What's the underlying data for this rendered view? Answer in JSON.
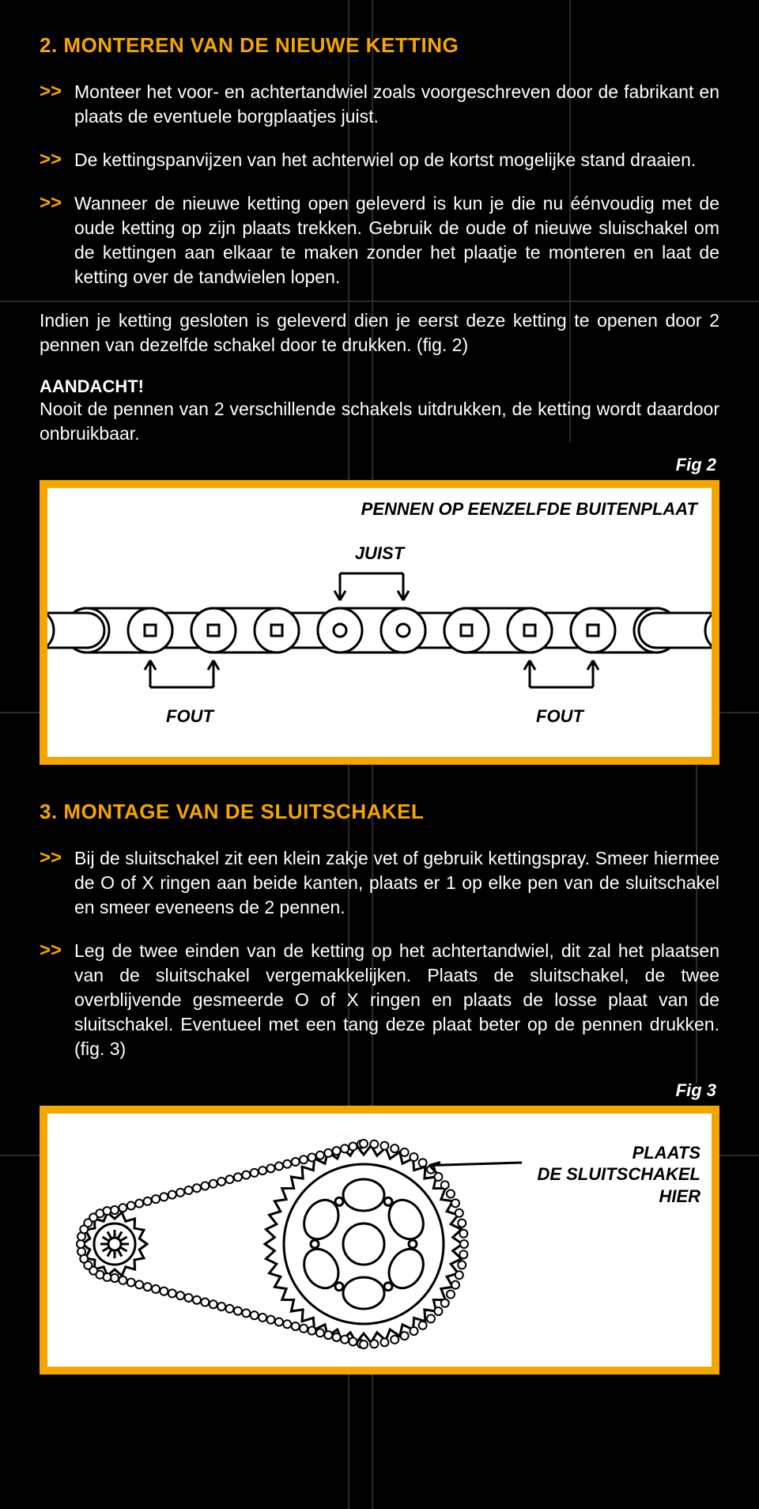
{
  "colors": {
    "accent": "#f6a500",
    "bg": "#000000",
    "text": "#ffffff",
    "diagram_bg": "#ffffff",
    "diagram_line": "#000000",
    "bg_line": "#2a2a2a"
  },
  "section2": {
    "heading": "2. MONTEREN VAN DE NIEUWE KETTING",
    "bullets": [
      "Monteer het voor- en achtertandwiel zoals voorgeschreven door de fabrikant en plaats de eventuele borgplaatjes juist.",
      "De kettingspanvijzen van het achterwiel op de kortst mogelijke stand draaien.",
      "Wanneer de nieuwe ketting open geleverd is kun je die nu éénvoudig met de oude ketting op zijn plaats trekken.  Gebruik de oude of nieuwe sluischakel om de kettingen aan elkaar te maken zonder het plaatje te monteren en laat de ketting over de tandwielen lopen."
    ],
    "para1": "Indien je ketting gesloten is geleverd dien je eerst deze ketting te openen door 2 pennen van dezelfde schakel door te drukken. (fig. 2)",
    "attention_label": "AANDACHT!",
    "attention_text": "Nooit de pennen van 2 verschillende schakels uitdrukken, de ketting wordt daardoor onbruikbaar."
  },
  "fig2": {
    "label": "Fig 2",
    "top_text": "PENNEN OP EENZELFDE BUITENPLAAT",
    "juist": "JUIST",
    "fout": "FOUT",
    "chain": {
      "link_count": 5,
      "pin_pairs": [
        {
          "shape": "square"
        },
        {
          "shape": "square"
        },
        {
          "shape": "circle"
        },
        {
          "shape": "square"
        },
        {
          "shape": "square"
        }
      ]
    }
  },
  "section3": {
    "heading": "3. MONTAGE VAN DE SLUITSCHAKEL",
    "bullets": [
      "Bij de sluitschakel zit een klein zakje vet of gebruik kettingspray. Smeer hiermee de O of X ringen aan beide kanten, plaats er 1 op elke pen van de sluitschakel en smeer eveneens de 2 pennen.",
      "Leg de twee einden van de ketting op het achtertandwiel, dit zal het plaatsen van de sluitschakel vergemakkelijken. Plaats de sluitschakel, de twee overblijvende gesmeerde O of X ringen en plaats de losse plaat van de sluitschakel. Eventueel met een tang deze plaat beter op de pennen drukken. (fig. 3)"
    ]
  },
  "fig3": {
    "label": "Fig 3",
    "callout": "PLAATS\nDE SLUITSCHAKEL\nHIER",
    "rear_sprocket_teeth": 42,
    "front_sprocket_teeth": 14
  },
  "bullet_glyph": ">>"
}
